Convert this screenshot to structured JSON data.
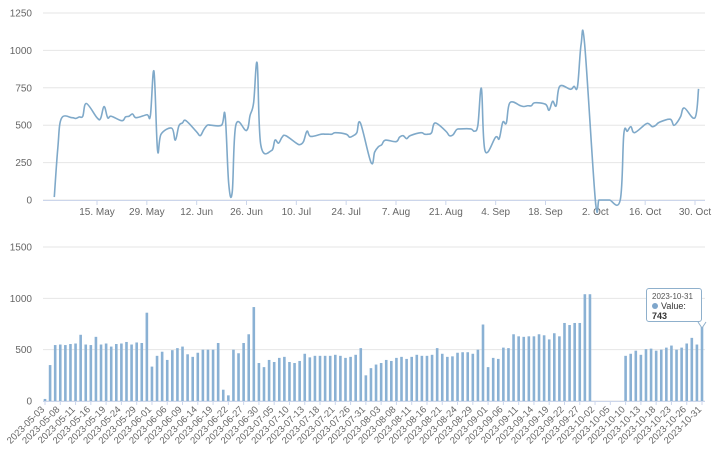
{
  "chart_data": [
    {
      "type": "line",
      "title": "",
      "xlabel": "",
      "ylabel": "",
      "ylim": [
        0,
        1250
      ],
      "yticks": [
        "0",
        "250",
        "500",
        "750",
        "1000",
        "1250"
      ],
      "xtick_labels": [
        {
          "date": "2023-05-15",
          "label": "15. May"
        },
        {
          "date": "2023-05-29",
          "label": "29. May"
        },
        {
          "date": "2023-06-12",
          "label": "12. Jun"
        },
        {
          "date": "2023-06-26",
          "label": "26. Jun"
        },
        {
          "date": "2023-07-10",
          "label": "10. Jul"
        },
        {
          "date": "2023-07-24",
          "label": "24. Jul"
        },
        {
          "date": "2023-08-07",
          "label": "7. Aug"
        },
        {
          "date": "2023-08-21",
          "label": "21. Aug"
        },
        {
          "date": "2023-09-04",
          "label": "4. Sep"
        },
        {
          "date": "2023-09-18",
          "label": "18. Sep"
        },
        {
          "date": "2023-10-02",
          "label": "2. Oct"
        },
        {
          "date": "2023-10-16",
          "label": "16. Oct"
        },
        {
          "date": "2023-10-30",
          "label": "30. Oct"
        }
      ],
      "grid": true,
      "color": "#7fa9c9",
      "note": "same series as bar chart, plotted on a time axis (missing days drawn as 0)"
    },
    {
      "type": "bar",
      "title": "",
      "xlabel": "",
      "ylabel": "",
      "ylim": [
        0,
        1500
      ],
      "yticks": [
        "0",
        "500",
        "1000",
        "1500"
      ],
      "grid": true,
      "color": "#8ab1d4",
      "label_every": 3,
      "categories": [
        "2023-05-03",
        "2023-05-04",
        "2023-05-05",
        "2023-05-08",
        "2023-05-09",
        "2023-05-10",
        "2023-05-11",
        "2023-05-12",
        "2023-05-15",
        "2023-05-16",
        "2023-05-17",
        "2023-05-18",
        "2023-05-19",
        "2023-05-22",
        "2023-05-23",
        "2023-05-24",
        "2023-05-25",
        "2023-05-26",
        "2023-05-29",
        "2023-05-30",
        "2023-05-31",
        "2023-06-01",
        "2023-06-02",
        "2023-06-05",
        "2023-06-06",
        "2023-06-07",
        "2023-06-08",
        "2023-06-09",
        "2023-06-12",
        "2023-06-13",
        "2023-06-14",
        "2023-06-15",
        "2023-06-16",
        "2023-06-19",
        "2023-06-20",
        "2023-06-21",
        "2023-06-22",
        "2023-06-23",
        "2023-06-26",
        "2023-06-27",
        "2023-06-28",
        "2023-06-29",
        "2023-06-30",
        "2023-07-03",
        "2023-07-04",
        "2023-07-05",
        "2023-07-06",
        "2023-07-07",
        "2023-07-10",
        "2023-07-11",
        "2023-07-12",
        "2023-07-13",
        "2023-07-14",
        "2023-07-17",
        "2023-07-18",
        "2023-07-19",
        "2023-07-20",
        "2023-07-21",
        "2023-07-24",
        "2023-07-25",
        "2023-07-26",
        "2023-07-27",
        "2023-07-28",
        "2023-07-31",
        "2023-08-01",
        "2023-08-02",
        "2023-08-03",
        "2023-08-04",
        "2023-08-07",
        "2023-08-08",
        "2023-08-09",
        "2023-08-10",
        "2023-08-11",
        "2023-08-14",
        "2023-08-15",
        "2023-08-16",
        "2023-08-17",
        "2023-08-18",
        "2023-08-21",
        "2023-08-22",
        "2023-08-23",
        "2023-08-24",
        "2023-08-25",
        "2023-08-28",
        "2023-08-29",
        "2023-08-30",
        "2023-08-31",
        "2023-09-01",
        "2023-09-04",
        "2023-09-05",
        "2023-09-06",
        "2023-09-07",
        "2023-09-08",
        "2023-09-11",
        "2023-09-12",
        "2023-09-13",
        "2023-09-14",
        "2023-09-15",
        "2023-09-18",
        "2023-09-19",
        "2023-09-20",
        "2023-09-21",
        "2023-09-22",
        "2023-09-25",
        "2023-09-26",
        "2023-09-27",
        "2023-09-28",
        "2023-09-29",
        "2023-10-02",
        "2023-10-03",
        "2023-10-04",
        "2023-10-05",
        "2023-10-06",
        "2023-10-09",
        "2023-10-10",
        "2023-10-11",
        "2023-10-12",
        "2023-10-13",
        "2023-10-16",
        "2023-10-17",
        "2023-10-18",
        "2023-10-19",
        "2023-10-20",
        "2023-10-23",
        "2023-10-24",
        "2023-10-25",
        "2023-10-26",
        "2023-10-27",
        "2023-10-30",
        "2023-10-31"
      ],
      "values": [
        20,
        350,
        545,
        550,
        545,
        555,
        560,
        645,
        550,
        545,
        625,
        550,
        560,
        530,
        555,
        560,
        575,
        550,
        570,
        565,
        860,
        335,
        440,
        480,
        400,
        495,
        515,
        530,
        455,
        430,
        470,
        500,
        500,
        500,
        565,
        110,
        55,
        500,
        465,
        565,
        650,
        915,
        370,
        330,
        400,
        380,
        420,
        430,
        380,
        370,
        390,
        460,
        425,
        440,
        440,
        440,
        440,
        450,
        440,
        420,
        430,
        450,
        515,
        250,
        320,
        355,
        370,
        400,
        390,
        420,
        430,
        410,
        430,
        450,
        440,
        440,
        450,
        515,
        460,
        430,
        435,
        470,
        475,
        475,
        460,
        500,
        745,
        330,
        420,
        410,
        520,
        515,
        650,
        630,
        625,
        630,
        630,
        650,
        640,
        600,
        660,
        630,
        760,
        740,
        760,
        760,
        1040,
        1040,
        null,
        null,
        null,
        null,
        null,
        null,
        440,
        460,
        490,
        450,
        505,
        510,
        490,
        500,
        520,
        540,
        500,
        520,
        560,
        615,
        550,
        743
      ],
      "tooltip": {
        "date": "2023-10-31",
        "label": "Value: ",
        "value": "743"
      }
    }
  ]
}
